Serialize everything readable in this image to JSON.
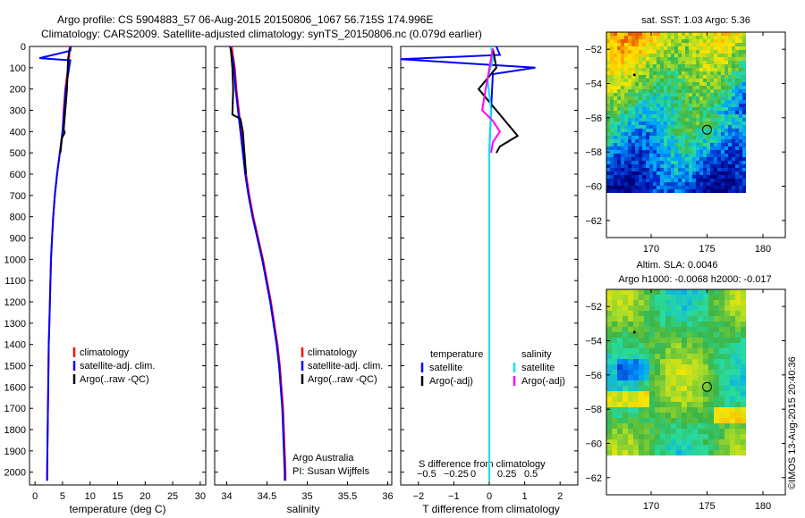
{
  "header": {
    "line1": "Argo profile: CS 5904883_57 06-Aug-2015 20150806_1067 56.715S 174.996E",
    "line2": "Climatology: CARS2009. Satellite-adjusted climatology: synTS_20150806.nc (0.079d earlier)"
  },
  "side_stamp": "©IMOS 13-Aug-2015 20:40:36",
  "colors": {
    "climatology": "#ff0000",
    "satellite": "#0000ff",
    "argo": "#000000",
    "salinity_satellite": "#00e5ff",
    "salinity_argo": "#ff00ff"
  },
  "chart_data": [
    {
      "type": "line",
      "panel": "temperature",
      "xlabel": "temperature (deg C)",
      "ylabel": "",
      "xlim": [
        -1,
        31
      ],
      "ylim": [
        2060,
        0
      ],
      "xticks": [
        "0",
        "5",
        "10",
        "15",
        "20",
        "25",
        "30"
      ],
      "yticks": [
        "0",
        "100",
        "200",
        "300",
        "400",
        "500",
        "600",
        "700",
        "800",
        "900",
        "1000",
        "1100",
        "1200",
        "1300",
        "1400",
        "1500",
        "1600",
        "1700",
        "1800",
        "1900",
        "2000"
      ],
      "legend": [
        "climatology",
        "satellite-adj. clim.",
        "Argo(..raw -QC)"
      ],
      "series": [
        {
          "name": "climatology",
          "color": "#ff0000",
          "points": [
            [
              6.3,
              0
            ],
            [
              6.2,
              50
            ],
            [
              6.0,
              100
            ],
            [
              5.5,
              200
            ],
            [
              5.2,
              300
            ],
            [
              5.0,
              400
            ],
            [
              4.5,
              500
            ],
            [
              4.0,
              600
            ],
            [
              3.6,
              700
            ],
            [
              3.3,
              800
            ],
            [
              3.1,
              900
            ],
            [
              2.9,
              1000
            ],
            [
              2.8,
              1100
            ],
            [
              2.7,
              1200
            ],
            [
              2.6,
              1300
            ],
            [
              2.5,
              1400
            ],
            [
              2.45,
              1500
            ],
            [
              2.4,
              1600
            ],
            [
              2.35,
              1700
            ],
            [
              2.3,
              1800
            ],
            [
              2.25,
              1900
            ],
            [
              2.2,
              2000
            ],
            [
              2.2,
              2040
            ]
          ]
        },
        {
          "name": "satellite-adj. clim.",
          "color": "#0000ff",
          "points": [
            [
              6.5,
              0
            ],
            [
              6.4,
              20
            ],
            [
              0.8,
              55
            ],
            [
              6.4,
              65
            ],
            [
              6.2,
              100
            ],
            [
              5.6,
              200
            ],
            [
              5.3,
              300
            ],
            [
              5.0,
              400
            ],
            [
              4.5,
              500
            ],
            [
              4.0,
              600
            ],
            [
              3.6,
              700
            ],
            [
              3.3,
              800
            ],
            [
              3.1,
              900
            ],
            [
              2.9,
              1000
            ],
            [
              2.8,
              1100
            ],
            [
              2.7,
              1200
            ],
            [
              2.6,
              1300
            ],
            [
              2.5,
              1400
            ],
            [
              2.45,
              1500
            ],
            [
              2.4,
              1600
            ],
            [
              2.35,
              1700
            ],
            [
              2.3,
              1800
            ],
            [
              2.25,
              1900
            ],
            [
              2.2,
              2000
            ],
            [
              2.2,
              2040
            ]
          ]
        },
        {
          "name": "Argo(..raw -QC)",
          "color": "#000000",
          "points": [
            [
              6.3,
              10
            ],
            [
              6.0,
              60
            ],
            [
              5.8,
              200
            ],
            [
              5.5,
              300
            ],
            [
              5.2,
              390
            ],
            [
              5.4,
              405
            ],
            [
              4.9,
              430
            ],
            [
              4.6,
              500
            ]
          ]
        }
      ]
    },
    {
      "type": "line",
      "panel": "salinity",
      "xlabel": "salinity",
      "xlim": [
        33.85,
        36.05
      ],
      "ylim": [
        2060,
        0
      ],
      "xticks": [
        "34",
        "34.5",
        "35",
        "35.5",
        "36"
      ],
      "legend": [
        "climatology",
        "satellite-adj. clim.",
        "Argo(..raw -QC)"
      ],
      "annotation": [
        "Argo Australia",
        "PI: Susan Wijffels"
      ],
      "series": [
        {
          "name": "climatology",
          "color": "#ff0000",
          "points": [
            [
              34.06,
              0
            ],
            [
              34.08,
              50
            ],
            [
              34.1,
              100
            ],
            [
              34.12,
              200
            ],
            [
              34.15,
              300
            ],
            [
              34.18,
              400
            ],
            [
              34.21,
              500
            ],
            [
              34.24,
              600
            ],
            [
              34.28,
              700
            ],
            [
              34.33,
              800
            ],
            [
              34.39,
              900
            ],
            [
              34.45,
              1000
            ],
            [
              34.5,
              1100
            ],
            [
              34.55,
              1200
            ],
            [
              34.59,
              1300
            ],
            [
              34.63,
              1400
            ],
            [
              34.66,
              1500
            ],
            [
              34.68,
              1600
            ],
            [
              34.7,
              1700
            ],
            [
              34.71,
              1800
            ],
            [
              34.72,
              1900
            ],
            [
              34.73,
              2000
            ],
            [
              34.73,
              2040
            ]
          ]
        },
        {
          "name": "satellite-adj. clim.",
          "color": "#0000ff",
          "points": [
            [
              34.04,
              0
            ],
            [
              34.07,
              50
            ],
            [
              34.09,
              100
            ],
            [
              34.11,
              200
            ],
            [
              34.14,
              300
            ],
            [
              34.17,
              400
            ],
            [
              34.2,
              500
            ],
            [
              34.23,
              600
            ],
            [
              34.27,
              700
            ],
            [
              34.32,
              800
            ],
            [
              34.38,
              900
            ],
            [
              34.44,
              1000
            ],
            [
              34.49,
              1100
            ],
            [
              34.54,
              1200
            ],
            [
              34.58,
              1300
            ],
            [
              34.62,
              1400
            ],
            [
              34.65,
              1500
            ],
            [
              34.67,
              1600
            ],
            [
              34.69,
              1700
            ],
            [
              34.7,
              1800
            ],
            [
              34.71,
              1900
            ],
            [
              34.72,
              2000
            ],
            [
              34.72,
              2040
            ]
          ]
        },
        {
          "name": "Argo(..raw -QC)",
          "color": "#000000",
          "points": [
            [
              34.05,
              10
            ],
            [
              34.07,
              100
            ],
            [
              34.08,
              200
            ],
            [
              34.07,
              320
            ],
            [
              34.17,
              340
            ],
            [
              34.2,
              400
            ],
            [
              34.22,
              500
            ],
            [
              34.24,
              600
            ]
          ]
        }
      ]
    },
    {
      "type": "line",
      "panel": "difference",
      "xlabel": "T difference from climatology",
      "top_xlabel": "S difference from climatology",
      "xlim": [
        -2.5,
        2.5
      ],
      "ylim": [
        2060,
        0
      ],
      "xticks": [
        "−2",
        "−1",
        "0",
        "1",
        "2"
      ],
      "top_xticks": [
        "−0.5",
        "−0.25",
        "0",
        "0.25",
        "0.5"
      ],
      "legend_headers": [
        "temperature",
        "salinity"
      ],
      "legend": [
        "satellite",
        "Argo(-adj)",
        "satellite",
        "Argo(-adj)"
      ],
      "series": [
        {
          "name": "satellite",
          "group": "temperature",
          "color": "#0000ff",
          "points": [
            [
              0.2,
              0
            ],
            [
              0.3,
              40
            ],
            [
              -2.5,
              60
            ],
            [
              1.3,
              100
            ],
            [
              0.1,
              130
            ],
            [
              0.05,
              300
            ],
            [
              0.0,
              500
            ],
            [
              0.0,
              2040
            ]
          ]
        },
        {
          "name": "Argo(-adj)",
          "group": "temperature",
          "color": "#000000",
          "points": [
            [
              0.1,
              10
            ],
            [
              0.2,
              100
            ],
            [
              -0.3,
              200
            ],
            [
              0.2,
              300
            ],
            [
              0.6,
              380
            ],
            [
              0.8,
              420
            ],
            [
              0.3,
              470
            ],
            [
              0.2,
              500
            ]
          ]
        },
        {
          "name": "satellite",
          "group": "salinity",
          "color": "#00e5ff",
          "points": [
            [
              0.05,
              0
            ],
            [
              0.1,
              60
            ],
            [
              -0.05,
              150
            ],
            [
              0.05,
              300
            ],
            [
              0.0,
              500
            ],
            [
              0.0,
              2040
            ]
          ]
        },
        {
          "name": "Argo(-adj)",
          "group": "salinity",
          "color": "#ff00ff",
          "points": [
            [
              0.1,
              10
            ],
            [
              -0.1,
              200
            ],
            [
              -0.2,
              300
            ],
            [
              0.1,
              350
            ],
            [
              0.3,
              400
            ],
            [
              0.1,
              450
            ],
            [
              0.05,
              500
            ]
          ]
        }
      ]
    },
    {
      "type": "heatmap",
      "panel": "sst_map",
      "title": "sat. SST: 1.03 Argo: 5.36",
      "xlim": [
        166,
        182
      ],
      "ylim": [
        -63,
        -51
      ],
      "xticks": [
        "170",
        "175",
        "180"
      ],
      "yticks": [
        "−52",
        "−54",
        "−56",
        "−58",
        "−60",
        "−62"
      ],
      "marker": {
        "lon": 175.0,
        "lat": -56.7
      }
    },
    {
      "type": "heatmap",
      "panel": "sla_map",
      "title": "Altim. SLA: 0.0046",
      "subtitle": "Argo h1000: -0.0068 h2000: -0.017",
      "xlim": [
        166,
        182
      ],
      "ylim": [
        -63,
        -51
      ],
      "xticks": [
        "170",
        "175",
        "180"
      ],
      "yticks": [
        "−52",
        "−54",
        "−56",
        "−58",
        "−60",
        "−62"
      ],
      "marker": {
        "lon": 175.0,
        "lat": -56.7
      }
    }
  ]
}
